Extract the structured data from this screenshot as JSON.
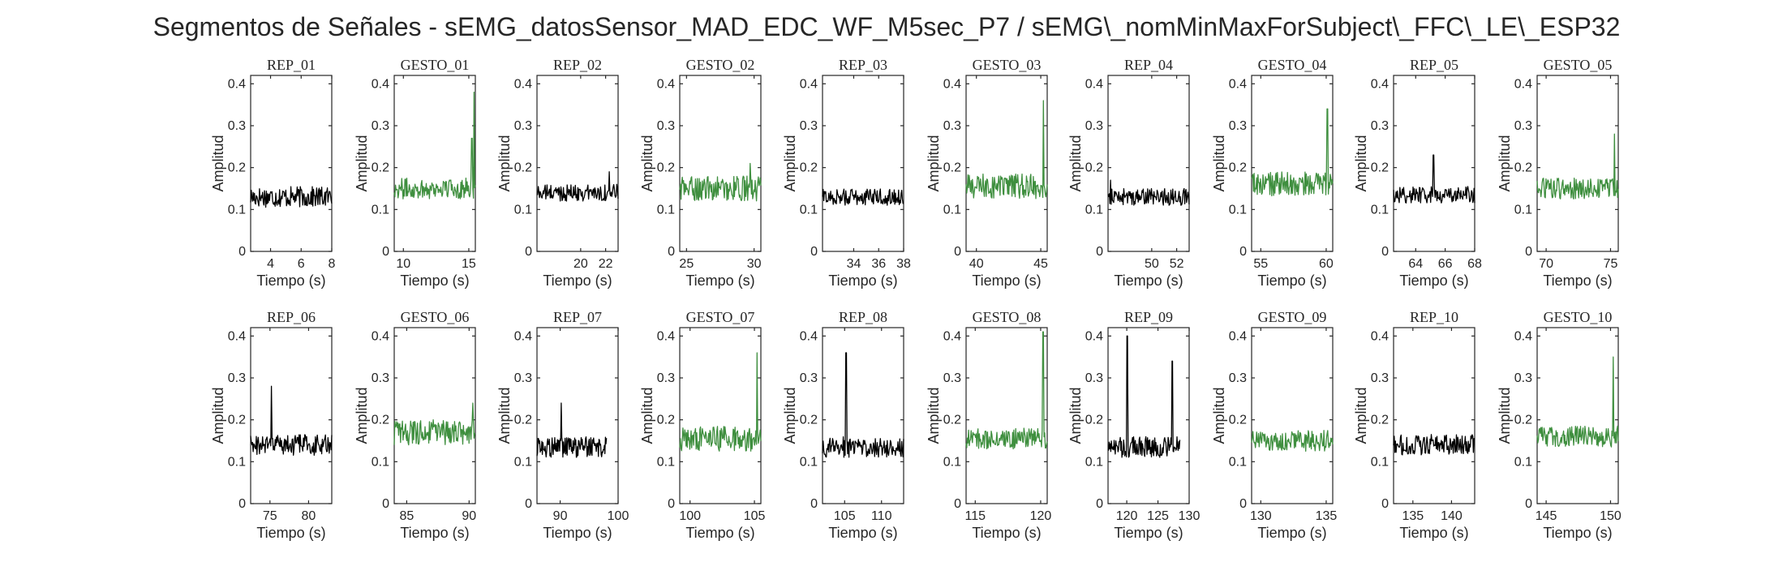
{
  "figure": {
    "title": "Segmentos de Señales - sEMG_datosSensor_MAD_EDC_WF_M5sec_P7 / sEMG\\_nomMinMaxForSubject\\_FFC\\_LE\\_ESP32",
    "colors": {
      "rep": "#000000",
      "gesto": "#3f8f3f"
    }
  },
  "chart_data": [
    {
      "type": "line",
      "title": "REP_01",
      "xlabel": "Tiempo (s)",
      "ylabel": "Amplitud",
      "xlim": [
        2.7,
        8
      ],
      "ylim": [
        0,
        0.42
      ],
      "xticks": [
        4,
        6,
        8
      ],
      "xtick_labels": [
        "4",
        "6",
        "8"
      ],
      "yticks": [
        0,
        0.1,
        0.2,
        0.3,
        0.4
      ],
      "ytick_labels": [
        "0",
        "0.1",
        "0.2",
        "0.3",
        "0.4"
      ],
      "color": "rep",
      "x_range": [
        2.7,
        8
      ],
      "baseline": 0.13,
      "noise": 0.025,
      "peaks": []
    },
    {
      "type": "line",
      "title": "GESTO_01",
      "xlabel": "Tiempo (s)",
      "ylabel": "Amplitud",
      "xlim": [
        9.3,
        15.5
      ],
      "ylim": [
        0,
        0.42
      ],
      "xticks": [
        10,
        15
      ],
      "xtick_labels": [
        "10",
        "15"
      ],
      "yticks": [
        0,
        0.1,
        0.2,
        0.3,
        0.4
      ],
      "ytick_labels": [
        "0",
        "0.1",
        "0.2",
        "0.3",
        "0.4"
      ],
      "color": "gesto",
      "x_range": [
        9.3,
        15.5
      ],
      "baseline": 0.15,
      "noise": 0.025,
      "peaks": [
        [
          15.25,
          0.27
        ],
        [
          15.4,
          0.38
        ]
      ]
    },
    {
      "type": "line",
      "title": "REP_02",
      "xlabel": "Tiempo (s)",
      "ylabel": "Amplitud",
      "xlim": [
        16.5,
        23
      ],
      "ylim": [
        0,
        0.42
      ],
      "xticks": [
        20,
        22
      ],
      "xtick_labels": [
        "20",
        "22"
      ],
      "yticks": [
        0,
        0.1,
        0.2,
        0.3,
        0.4
      ],
      "ytick_labels": [
        "0",
        "0.1",
        "0.2",
        "0.3",
        "0.4"
      ],
      "color": "rep",
      "x_range": [
        16.5,
        23
      ],
      "baseline": 0.14,
      "noise": 0.02,
      "peaks": [
        [
          22.3,
          0.19
        ]
      ]
    },
    {
      "type": "line",
      "title": "GESTO_02",
      "xlabel": "Tiempo (s)",
      "ylabel": "Amplitud",
      "xlim": [
        24.5,
        30.5
      ],
      "ylim": [
        0,
        0.42
      ],
      "xticks": [
        25,
        30
      ],
      "xtick_labels": [
        "25",
        "30"
      ],
      "yticks": [
        0,
        0.1,
        0.2,
        0.3,
        0.4
      ],
      "ytick_labels": [
        "0",
        "0.1",
        "0.2",
        "0.3",
        "0.4"
      ],
      "color": "gesto",
      "x_range": [
        24.5,
        30.5
      ],
      "baseline": 0.15,
      "noise": 0.03,
      "peaks": [
        [
          29.7,
          0.21
        ]
      ]
    },
    {
      "type": "line",
      "title": "REP_03",
      "xlabel": "Tiempo (s)",
      "ylabel": "Amplitud",
      "xlim": [
        31.5,
        38
      ],
      "ylim": [
        0,
        0.42
      ],
      "xticks": [
        34,
        36,
        38
      ],
      "xtick_labels": [
        "34",
        "36",
        "38"
      ],
      "yticks": [
        0,
        0.1,
        0.2,
        0.3,
        0.4
      ],
      "ytick_labels": [
        "0",
        "0.1",
        "0.2",
        "0.3",
        "0.4"
      ],
      "color": "rep",
      "x_range": [
        31.5,
        38
      ],
      "baseline": 0.13,
      "noise": 0.02,
      "peaks": []
    },
    {
      "type": "line",
      "title": "GESTO_03",
      "xlabel": "Tiempo (s)",
      "ylabel": "Amplitud",
      "xlim": [
        39.2,
        45.5
      ],
      "ylim": [
        0,
        0.42
      ],
      "xticks": [
        40,
        45
      ],
      "xtick_labels": [
        "40",
        "45"
      ],
      "yticks": [
        0,
        0.1,
        0.2,
        0.3,
        0.4
      ],
      "ytick_labels": [
        "0",
        "0.1",
        "0.2",
        "0.3",
        "0.4"
      ],
      "color": "gesto",
      "x_range": [
        39.2,
        45.5
      ],
      "baseline": 0.155,
      "noise": 0.03,
      "peaks": [
        [
          45.2,
          0.36
        ]
      ]
    },
    {
      "type": "line",
      "title": "REP_04",
      "xlabel": "Tiempo (s)",
      "ylabel": "Amplitud",
      "xlim": [
        46.5,
        53
      ],
      "ylim": [
        0,
        0.42
      ],
      "xticks": [
        50,
        52
      ],
      "xtick_labels": [
        "50",
        "52"
      ],
      "yticks": [
        0,
        0.1,
        0.2,
        0.3,
        0.4
      ],
      "ytick_labels": [
        "0",
        "0.1",
        "0.2",
        "0.3",
        "0.4"
      ],
      "color": "rep",
      "x_range": [
        46.5,
        53
      ],
      "baseline": 0.13,
      "noise": 0.02,
      "peaks": [
        [
          46.7,
          0.17
        ]
      ]
    },
    {
      "type": "line",
      "title": "GESTO_04",
      "xlabel": "Tiempo (s)",
      "ylabel": "Amplitud",
      "xlim": [
        54.3,
        60.5
      ],
      "ylim": [
        0,
        0.42
      ],
      "xticks": [
        55,
        60
      ],
      "xtick_labels": [
        "55",
        "60"
      ],
      "yticks": [
        0,
        0.1,
        0.2,
        0.3,
        0.4
      ],
      "ytick_labels": [
        "0",
        "0.1",
        "0.2",
        "0.3",
        "0.4"
      ],
      "color": "gesto",
      "x_range": [
        54.3,
        60.5
      ],
      "baseline": 0.16,
      "noise": 0.03,
      "peaks": [
        [
          60.1,
          0.34
        ]
      ]
    },
    {
      "type": "line",
      "title": "REP_05",
      "xlabel": "Tiempo (s)",
      "ylabel": "Amplitud",
      "xlim": [
        62.5,
        68
      ],
      "ylim": [
        0,
        0.42
      ],
      "xticks": [
        64,
        66,
        68
      ],
      "xtick_labels": [
        "64",
        "66",
        "68"
      ],
      "yticks": [
        0,
        0.1,
        0.2,
        0.3,
        0.4
      ],
      "ytick_labels": [
        "0",
        "0.1",
        "0.2",
        "0.3",
        "0.4"
      ],
      "color": "rep",
      "x_range": [
        62.5,
        68
      ],
      "baseline": 0.135,
      "noise": 0.02,
      "peaks": [
        [
          65.2,
          0.23
        ]
      ]
    },
    {
      "type": "line",
      "title": "GESTO_05",
      "xlabel": "Tiempo (s)",
      "ylabel": "Amplitud",
      "xlim": [
        69.3,
        75.6
      ],
      "ylim": [
        0,
        0.42
      ],
      "xticks": [
        70,
        75
      ],
      "xtick_labels": [
        "70",
        "75"
      ],
      "yticks": [
        0,
        0.1,
        0.2,
        0.3,
        0.4
      ],
      "ytick_labels": [
        "0",
        "0.1",
        "0.2",
        "0.3",
        "0.4"
      ],
      "color": "gesto",
      "x_range": [
        69.3,
        75.6
      ],
      "baseline": 0.15,
      "noise": 0.025,
      "peaks": [
        [
          75.3,
          0.28
        ]
      ]
    },
    {
      "type": "line",
      "title": "REP_06",
      "xlabel": "Tiempo (s)",
      "ylabel": "Amplitud",
      "xlim": [
        72.5,
        83
      ],
      "ylim": [
        0,
        0.42
      ],
      "xticks": [
        75,
        80
      ],
      "xtick_labels": [
        "75",
        "80"
      ],
      "yticks": [
        0,
        0.1,
        0.2,
        0.3,
        0.4
      ],
      "ytick_labels": [
        "0",
        "0.1",
        "0.2",
        "0.3",
        "0.4"
      ],
      "color": "rep",
      "x_range": [
        72.5,
        83
      ],
      "baseline": 0.14,
      "noise": 0.025,
      "peaks": [
        [
          75.2,
          0.28
        ]
      ]
    },
    {
      "type": "line",
      "title": "GESTO_06",
      "xlabel": "Tiempo (s)",
      "ylabel": "Amplitud",
      "xlim": [
        84,
        90.5
      ],
      "ylim": [
        0,
        0.42
      ],
      "xticks": [
        85,
        90
      ],
      "xtick_labels": [
        "85",
        "90"
      ],
      "yticks": [
        0,
        0.1,
        0.2,
        0.3,
        0.4
      ],
      "ytick_labels": [
        "0",
        "0.1",
        "0.2",
        "0.3",
        "0.4"
      ],
      "color": "gesto",
      "x_range": [
        84,
        90.5
      ],
      "baseline": 0.17,
      "noise": 0.03,
      "peaks": [
        [
          90.3,
          0.24
        ]
      ]
    },
    {
      "type": "line",
      "title": "REP_07",
      "xlabel": "Tiempo (s)",
      "ylabel": "Amplitud",
      "xlim": [
        86,
        100
      ],
      "ylim": [
        0,
        0.42
      ],
      "xticks": [
        90,
        100
      ],
      "xtick_labels": [
        "90",
        "100"
      ],
      "yticks": [
        0,
        0.1,
        0.2,
        0.3,
        0.4
      ],
      "ytick_labels": [
        "0",
        "0.1",
        "0.2",
        "0.3",
        "0.4"
      ],
      "color": "rep",
      "x_range": [
        86,
        98
      ],
      "baseline": 0.135,
      "noise": 0.025,
      "peaks": [
        [
          90.2,
          0.24
        ]
      ]
    },
    {
      "type": "line",
      "title": "GESTO_07",
      "xlabel": "Tiempo (s)",
      "ylabel": "Amplitud",
      "xlim": [
        99.2,
        105.5
      ],
      "ylim": [
        0,
        0.42
      ],
      "xticks": [
        100,
        105
      ],
      "xtick_labels": [
        "100",
        "105"
      ],
      "yticks": [
        0,
        0.1,
        0.2,
        0.3,
        0.4
      ],
      "ytick_labels": [
        "0",
        "0.1",
        "0.2",
        "0.3",
        "0.4"
      ],
      "color": "gesto",
      "x_range": [
        99.2,
        105.5
      ],
      "baseline": 0.155,
      "noise": 0.03,
      "peaks": [
        [
          105.2,
          0.36
        ]
      ]
    },
    {
      "type": "line",
      "title": "REP_08",
      "xlabel": "Tiempo (s)",
      "ylabel": "Amplitud",
      "xlim": [
        102,
        113
      ],
      "ylim": [
        0,
        0.42
      ],
      "xticks": [
        105,
        110
      ],
      "xtick_labels": [
        "105",
        "110"
      ],
      "yticks": [
        0,
        0.1,
        0.2,
        0.3,
        0.4
      ],
      "ytick_labels": [
        "0",
        "0.1",
        "0.2",
        "0.3",
        "0.4"
      ],
      "color": "rep",
      "x_range": [
        102,
        113
      ],
      "baseline": 0.135,
      "noise": 0.025,
      "peaks": [
        [
          105.2,
          0.36
        ]
      ]
    },
    {
      "type": "line",
      "title": "GESTO_08",
      "xlabel": "Tiempo (s)",
      "ylabel": "Amplitud",
      "xlim": [
        114.3,
        120.5
      ],
      "ylim": [
        0,
        0.42
      ],
      "xticks": [
        115,
        120
      ],
      "xtick_labels": [
        "115",
        "120"
      ],
      "yticks": [
        0,
        0.1,
        0.2,
        0.3,
        0.4
      ],
      "ytick_labels": [
        "0",
        "0.1",
        "0.2",
        "0.3",
        "0.4"
      ],
      "color": "gesto",
      "x_range": [
        114.3,
        120.5
      ],
      "baseline": 0.155,
      "noise": 0.025,
      "peaks": [
        [
          120.2,
          0.41
        ]
      ]
    },
    {
      "type": "line",
      "title": "REP_09",
      "xlabel": "Tiempo (s)",
      "ylabel": "Amplitud",
      "xlim": [
        117,
        130
      ],
      "ylim": [
        0,
        0.42
      ],
      "xticks": [
        120,
        125,
        130
      ],
      "xtick_labels": [
        "120",
        "125",
        "130"
      ],
      "yticks": [
        0,
        0.1,
        0.2,
        0.3,
        0.4
      ],
      "ytick_labels": [
        "0",
        "0.1",
        "0.2",
        "0.3",
        "0.4"
      ],
      "color": "rep",
      "x_range": [
        117,
        128.5
      ],
      "baseline": 0.135,
      "noise": 0.025,
      "peaks": [
        [
          120.1,
          0.4
        ],
        [
          127.3,
          0.34
        ]
      ]
    },
    {
      "type": "line",
      "title": "GESTO_09",
      "xlabel": "Tiempo (s)",
      "ylabel": "Amplitud",
      "xlim": [
        129.3,
        135.5
      ],
      "ylim": [
        0,
        0.42
      ],
      "xticks": [
        130,
        135
      ],
      "xtick_labels": [
        "130",
        "135"
      ],
      "yticks": [
        0,
        0.1,
        0.2,
        0.3,
        0.4
      ],
      "ytick_labels": [
        "0",
        "0.1",
        "0.2",
        "0.3",
        "0.4"
      ],
      "color": "gesto",
      "x_range": [
        129.3,
        135.5
      ],
      "baseline": 0.15,
      "noise": 0.025,
      "peaks": []
    },
    {
      "type": "line",
      "title": "REP_10",
      "xlabel": "Tiempo (s)",
      "ylabel": "Amplitud",
      "xlim": [
        132.5,
        143
      ],
      "ylim": [
        0,
        0.42
      ],
      "xticks": [
        135,
        140
      ],
      "xtick_labels": [
        "135",
        "140"
      ],
      "yticks": [
        0,
        0.1,
        0.2,
        0.3,
        0.4
      ],
      "ytick_labels": [
        "0",
        "0.1",
        "0.2",
        "0.3",
        "0.4"
      ],
      "color": "rep",
      "x_range": [
        132.5,
        143
      ],
      "baseline": 0.14,
      "noise": 0.025,
      "peaks": []
    },
    {
      "type": "line",
      "title": "GESTO_10",
      "xlabel": "Tiempo (s)",
      "ylabel": "Amplitud",
      "xlim": [
        144.3,
        150.6
      ],
      "ylim": [
        0,
        0.42
      ],
      "xticks": [
        145,
        150
      ],
      "xtick_labels": [
        "145",
        "150"
      ],
      "yticks": [
        0,
        0.1,
        0.2,
        0.3,
        0.4
      ],
      "ytick_labels": [
        "0",
        "0.1",
        "0.2",
        "0.3",
        "0.4"
      ],
      "color": "gesto",
      "x_range": [
        144.3,
        150.6
      ],
      "baseline": 0.16,
      "noise": 0.025,
      "peaks": [
        [
          150.2,
          0.35
        ]
      ]
    }
  ]
}
